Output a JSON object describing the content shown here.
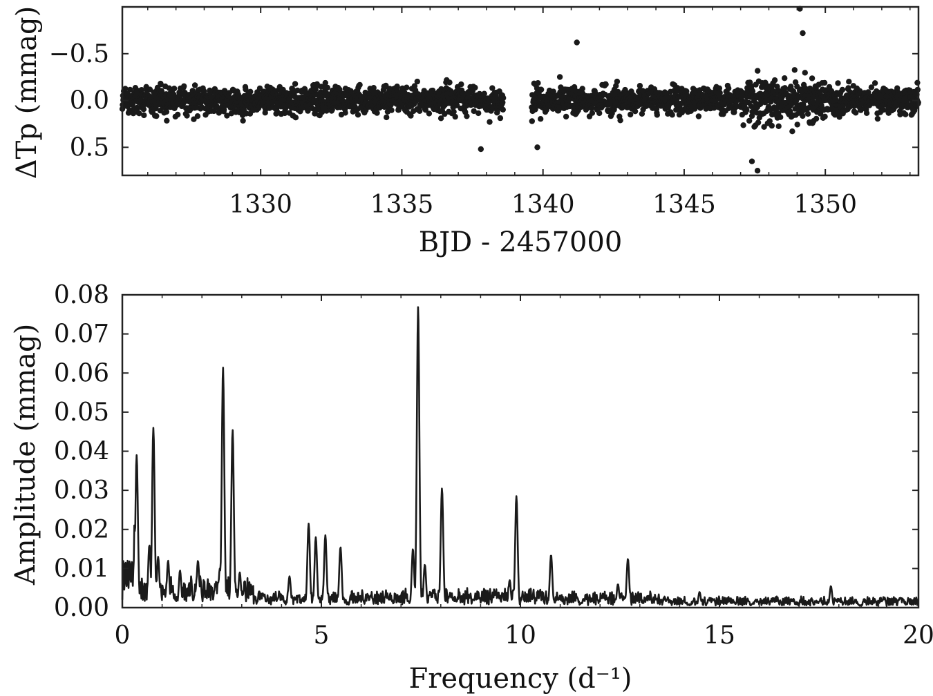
{
  "chart_data": [
    {
      "type": "scatter",
      "xlabel": "BJD - 2457000",
      "ylabel": "ΔTp (mmag)",
      "xlim": [
        1325.1,
        1353.3
      ],
      "ylim": [
        0.8,
        -1.0
      ],
      "y_inverted": true,
      "xticks": [
        1330,
        1335,
        1340,
        1345,
        1350
      ],
      "xtick_labels": [
        "1330",
        "1335",
        "1340",
        "1345",
        "1350"
      ],
      "yticks": [
        -0.5,
        0.0,
        0.5
      ],
      "ytick_labels": [
        "−0.5",
        "0.0",
        "0.5"
      ],
      "data_gap": [
        1338.6,
        1339.6
      ],
      "marker_color": "#1a1a1a",
      "series": [
        {
          "x_range": [
            1325.1,
            1353.3
          ],
          "y_typical_range": [
            -0.3,
            0.3
          ],
          "notable_points": [
            {
              "x": 1349.1,
              "y": -0.98
            },
            {
              "x": 1349.2,
              "y": -0.72
            },
            {
              "x": 1341.2,
              "y": -0.62
            },
            {
              "x": 1347.6,
              "y": 0.75
            },
            {
              "x": 1347.4,
              "y": 0.65
            },
            {
              "x": 1337.8,
              "y": 0.52
            },
            {
              "x": 1339.8,
              "y": 0.5
            }
          ]
        }
      ]
    },
    {
      "type": "line",
      "xlabel": "Frequency (d⁻¹)",
      "ylabel": "Amplitude (mmag)",
      "xlim": [
        0,
        20
      ],
      "ylim": [
        0,
        0.08
      ],
      "xticks": [
        0,
        5,
        10,
        15,
        20
      ],
      "xtick_labels": [
        "0",
        "5",
        "10",
        "15",
        "20"
      ],
      "yticks": [
        0,
        0.01,
        0.02,
        0.03,
        0.04,
        0.05,
        0.06,
        0.07,
        0.08
      ],
      "ytick_labels": [
        "0.00",
        "0.01",
        "0.02",
        "0.03",
        "0.04",
        "0.05",
        "0.06",
        "0.07",
        "0.08"
      ],
      "line_color": "#1a1a1a",
      "peaks": [
        {
          "x": 0.13,
          "y": 0.014
        },
        {
          "x": 0.2,
          "y": 0.015
        },
        {
          "x": 0.3,
          "y": 0.021
        },
        {
          "x": 0.36,
          "y": 0.039
        },
        {
          "x": 0.68,
          "y": 0.016
        },
        {
          "x": 0.78,
          "y": 0.046
        },
        {
          "x": 0.9,
          "y": 0.013
        },
        {
          "x": 1.15,
          "y": 0.012
        },
        {
          "x": 1.45,
          "y": 0.0095
        },
        {
          "x": 1.9,
          "y": 0.012
        },
        {
          "x": 2.45,
          "y": 0.01
        },
        {
          "x": 2.53,
          "y": 0.0615
        },
        {
          "x": 2.77,
          "y": 0.0455
        },
        {
          "x": 2.95,
          "y": 0.009
        },
        {
          "x": 4.2,
          "y": 0.008
        },
        {
          "x": 4.68,
          "y": 0.0215
        },
        {
          "x": 4.86,
          "y": 0.018
        },
        {
          "x": 5.1,
          "y": 0.0185
        },
        {
          "x": 5.48,
          "y": 0.0155
        },
        {
          "x": 7.3,
          "y": 0.015
        },
        {
          "x": 7.43,
          "y": 0.077
        },
        {
          "x": 7.6,
          "y": 0.011
        },
        {
          "x": 8.03,
          "y": 0.0305
        },
        {
          "x": 9.73,
          "y": 0.007
        },
        {
          "x": 9.9,
          "y": 0.0285
        },
        {
          "x": 10.77,
          "y": 0.0135
        },
        {
          "x": 12.45,
          "y": 0.006
        },
        {
          "x": 12.7,
          "y": 0.0125
        },
        {
          "x": 14.5,
          "y": 0.004
        },
        {
          "x": 17.8,
          "y": 0.0055
        }
      ]
    }
  ]
}
